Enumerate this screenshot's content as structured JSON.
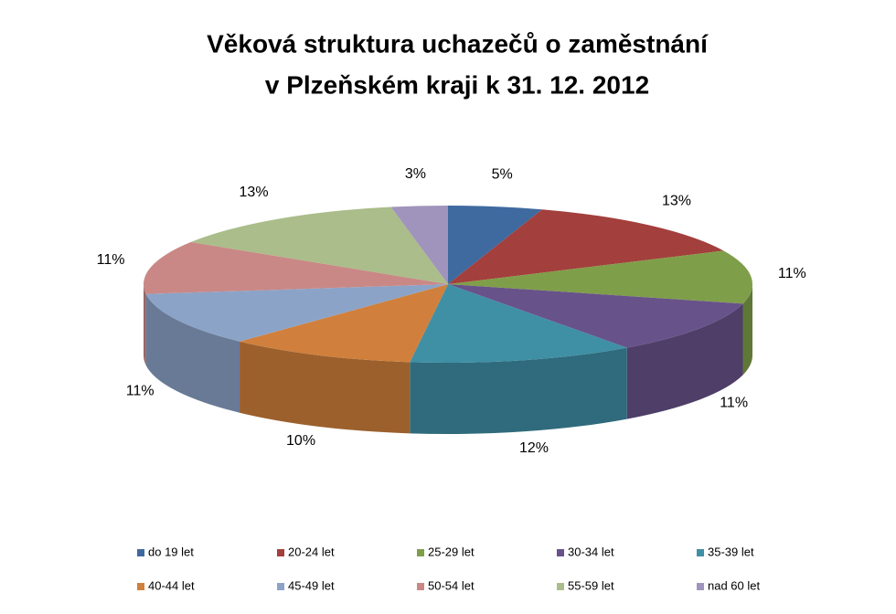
{
  "chart_data": {
    "type": "pie3d",
    "title": [
      "Věková struktura uchazečů o zaměstnání",
      "v Plzeňském kraji k 31. 12. 2012"
    ],
    "categories": [
      "do 19 let",
      "20-24 let",
      "25-29 let",
      "30-34 let",
      "35-39 let",
      "40-44 let",
      "45-49 let",
      "50-54 let",
      "55-59 let",
      "nad 60 let"
    ],
    "values": [
      5,
      13,
      11,
      11,
      12,
      10,
      11,
      11,
      13,
      3
    ],
    "value_labels": [
      "5%",
      "13%",
      "11%",
      "11%",
      "12%",
      "10%",
      "11%",
      "11%",
      "13%",
      "3%"
    ],
    "colors": [
      "#3f6aa0",
      "#a33f3c",
      "#7f9e49",
      "#68528a",
      "#3f8fa5",
      "#d0803c",
      "#8ca3c8",
      "#c98886",
      "#aabd8a",
      "#a094bc"
    ],
    "legend": "bottom"
  }
}
